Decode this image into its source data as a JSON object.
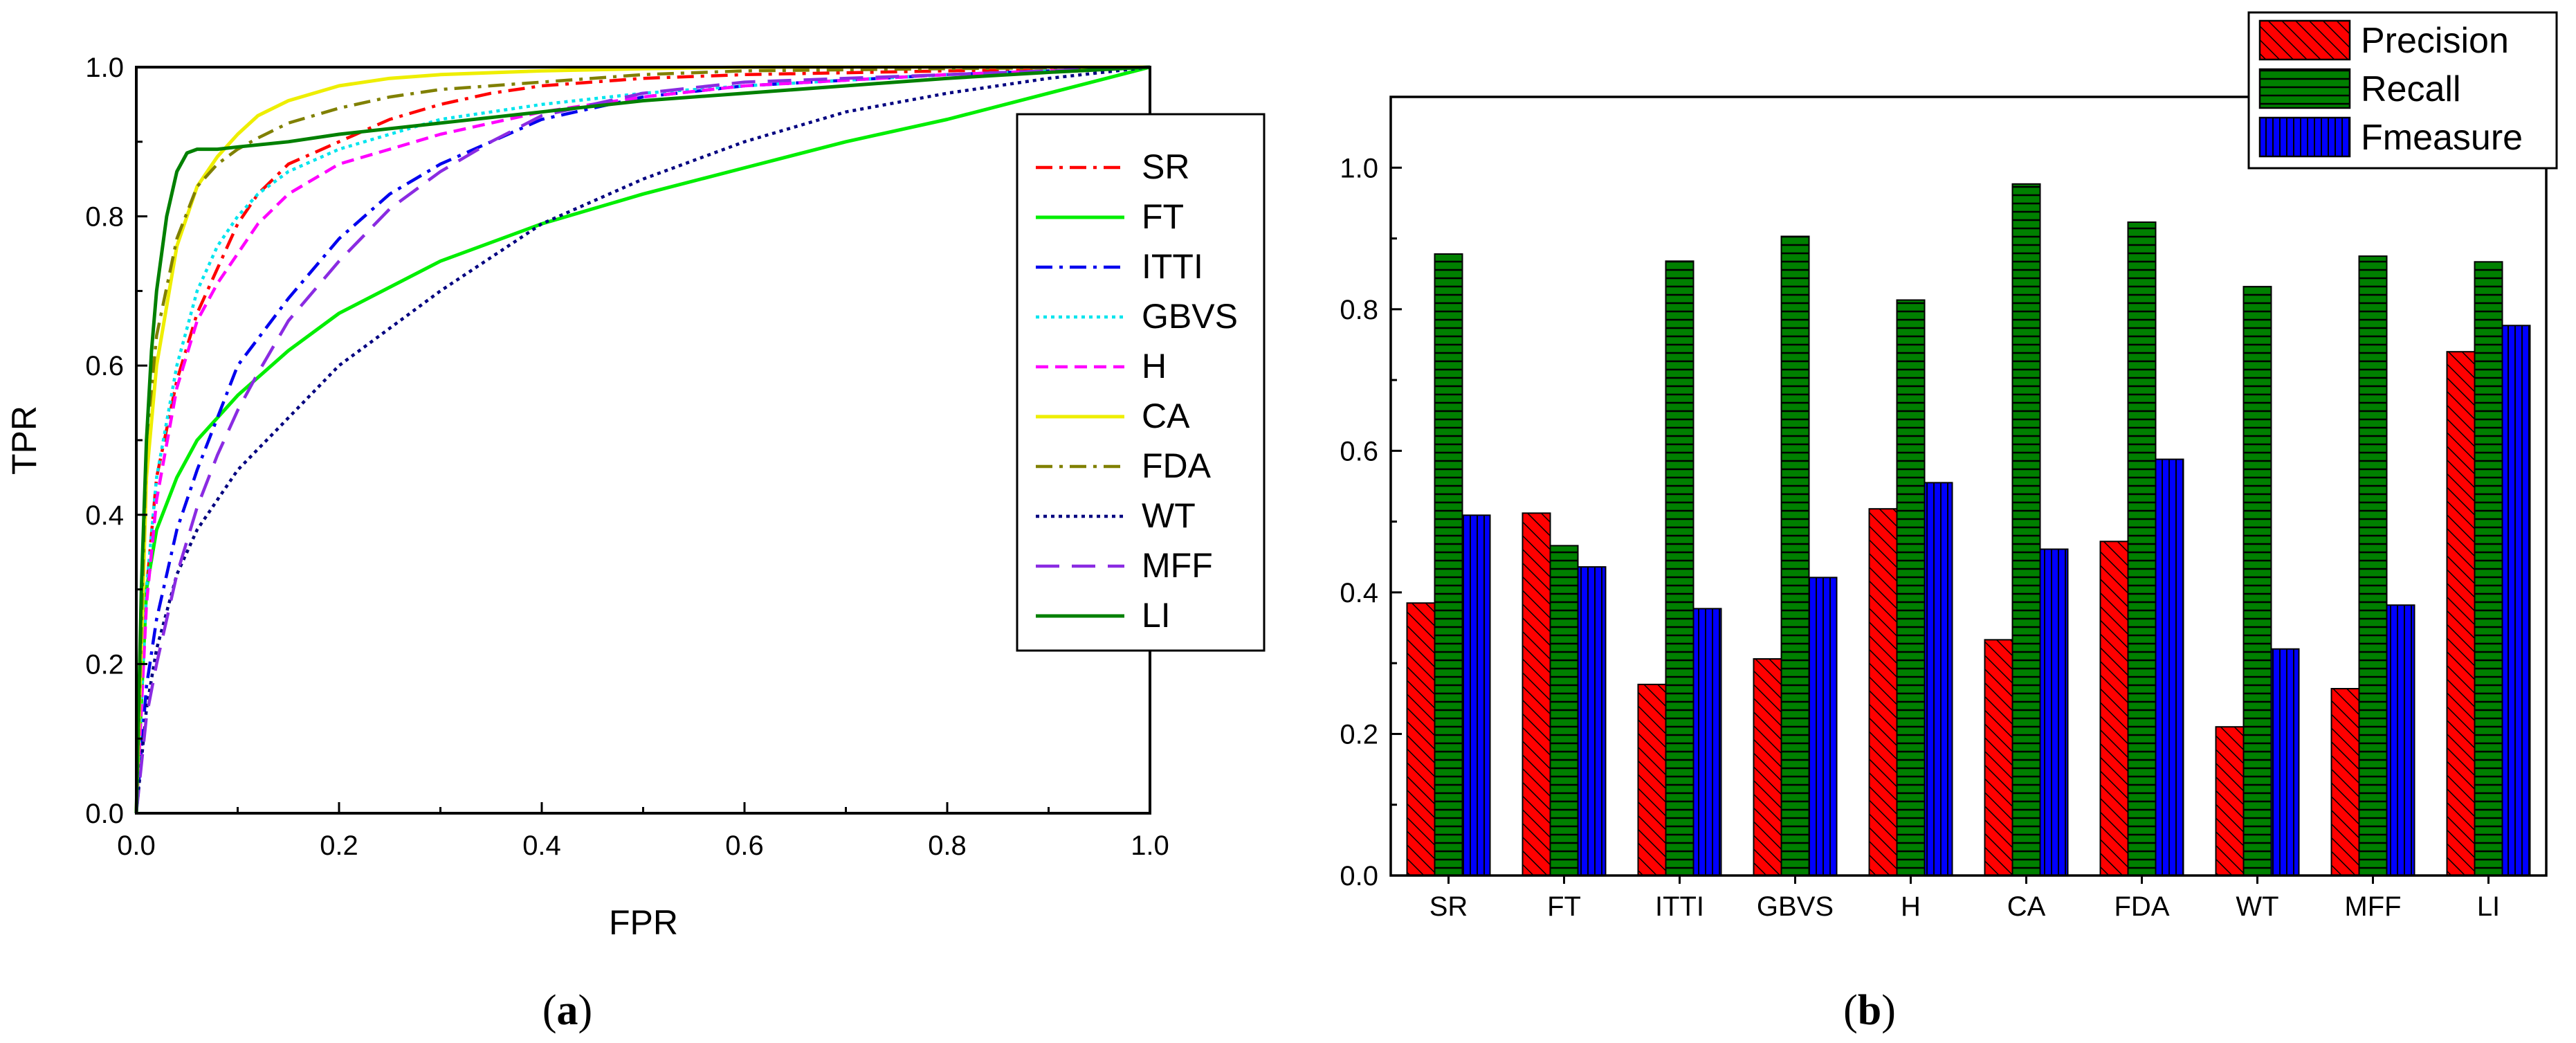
{
  "chart_data": [
    {
      "type": "line",
      "panel_label": {
        "open": "(",
        "letter": "a",
        "close": ")"
      },
      "xlabel": "FPR",
      "ylabel": "TPR",
      "xlim": [
        0.0,
        1.0
      ],
      "ylim": [
        0.0,
        1.0
      ],
      "x_ticks": [
        "0.0",
        "0.2",
        "0.4",
        "0.6",
        "0.8",
        "1.0"
      ],
      "y_ticks": [
        "0.0",
        "0.2",
        "0.4",
        "0.6",
        "0.8",
        "1.0"
      ],
      "legend_position": "right",
      "series": [
        {
          "name": "SR",
          "color": "#ff0000",
          "dash": "dashdot",
          "x": [
            0,
            0.01,
            0.02,
            0.04,
            0.06,
            0.08,
            0.1,
            0.12,
            0.15,
            0.2,
            0.25,
            0.3,
            0.35,
            0.4,
            0.5,
            0.6,
            0.8,
            1.0
          ],
          "y": [
            0,
            0.3,
            0.45,
            0.58,
            0.67,
            0.73,
            0.79,
            0.83,
            0.87,
            0.9,
            0.93,
            0.95,
            0.965,
            0.975,
            0.985,
            0.99,
            0.995,
            1.0
          ]
        },
        {
          "name": "FT",
          "color": "#00ee00",
          "dash": "solid",
          "x": [
            0,
            0.01,
            0.02,
            0.04,
            0.06,
            0.1,
            0.15,
            0.2,
            0.3,
            0.4,
            0.5,
            0.6,
            0.7,
            0.8,
            0.9,
            1.0
          ],
          "y": [
            0,
            0.3,
            0.38,
            0.45,
            0.5,
            0.56,
            0.62,
            0.67,
            0.74,
            0.79,
            0.83,
            0.865,
            0.9,
            0.93,
            0.965,
            1.0
          ]
        },
        {
          "name": "ITTI",
          "color": "#0000ee",
          "dash": "dashdot",
          "x": [
            0,
            0.01,
            0.02,
            0.04,
            0.06,
            0.08,
            0.1,
            0.15,
            0.2,
            0.25,
            0.3,
            0.35,
            0.4,
            0.5,
            0.6,
            0.8,
            1.0
          ],
          "y": [
            0,
            0.17,
            0.26,
            0.38,
            0.46,
            0.53,
            0.6,
            0.69,
            0.77,
            0.83,
            0.87,
            0.9,
            0.93,
            0.96,
            0.975,
            0.99,
            1.0
          ]
        },
        {
          "name": "GBVS",
          "color": "#00e5ee",
          "dash": "dotted",
          "x": [
            0,
            0.01,
            0.02,
            0.04,
            0.06,
            0.08,
            0.1,
            0.12,
            0.15,
            0.2,
            0.25,
            0.3,
            0.4,
            0.5,
            0.6,
            0.8,
            1.0
          ],
          "y": [
            0,
            0.3,
            0.45,
            0.6,
            0.7,
            0.76,
            0.8,
            0.83,
            0.86,
            0.89,
            0.91,
            0.93,
            0.95,
            0.965,
            0.975,
            0.99,
            1.0
          ]
        },
        {
          "name": "H",
          "color": "#ff00ff",
          "dash": "dashed",
          "x": [
            0,
            0.01,
            0.02,
            0.04,
            0.06,
            0.08,
            0.1,
            0.12,
            0.15,
            0.2,
            0.25,
            0.3,
            0.35,
            0.4,
            0.5,
            0.6,
            0.8,
            1.0
          ],
          "y": [
            0,
            0.28,
            0.42,
            0.57,
            0.66,
            0.71,
            0.75,
            0.79,
            0.83,
            0.87,
            0.89,
            0.91,
            0.925,
            0.94,
            0.96,
            0.975,
            0.99,
            1.0
          ]
        },
        {
          "name": "CA",
          "color": "#eeee00",
          "dash": "solid",
          "x": [
            0,
            0.01,
            0.02,
            0.04,
            0.06,
            0.08,
            0.1,
            0.12,
            0.15,
            0.2,
            0.25,
            0.3,
            0.4,
            0.5,
            0.6,
            0.8,
            1.0
          ],
          "y": [
            0,
            0.45,
            0.6,
            0.76,
            0.84,
            0.88,
            0.91,
            0.935,
            0.955,
            0.975,
            0.985,
            0.99,
            0.995,
            0.998,
            1.0,
            1.0,
            1.0
          ]
        },
        {
          "name": "FDA",
          "color": "#808000",
          "dash": "dashdot",
          "x": [
            0,
            0.01,
            0.02,
            0.04,
            0.06,
            0.08,
            0.1,
            0.12,
            0.15,
            0.2,
            0.25,
            0.3,
            0.4,
            0.5,
            0.6,
            0.8,
            1.0
          ],
          "y": [
            0,
            0.5,
            0.64,
            0.77,
            0.84,
            0.87,
            0.89,
            0.905,
            0.925,
            0.945,
            0.96,
            0.97,
            0.98,
            0.99,
            0.995,
            0.998,
            1.0
          ]
        },
        {
          "name": "WT",
          "color": "#000080",
          "dash": "dotted",
          "x": [
            0,
            0.01,
            0.02,
            0.04,
            0.06,
            0.08,
            0.1,
            0.15,
            0.2,
            0.3,
            0.4,
            0.5,
            0.6,
            0.7,
            0.8,
            0.9,
            1.0
          ],
          "y": [
            0,
            0.14,
            0.22,
            0.32,
            0.38,
            0.42,
            0.46,
            0.53,
            0.6,
            0.7,
            0.79,
            0.85,
            0.9,
            0.94,
            0.965,
            0.985,
            1.0
          ]
        },
        {
          "name": "MFF",
          "color": "#8a2be2",
          "dash": "longdash",
          "x": [
            0,
            0.01,
            0.02,
            0.04,
            0.06,
            0.08,
            0.1,
            0.12,
            0.15,
            0.2,
            0.25,
            0.3,
            0.35,
            0.4,
            0.5,
            0.6,
            0.8,
            1.0
          ],
          "y": [
            0,
            0.13,
            0.2,
            0.32,
            0.41,
            0.48,
            0.54,
            0.59,
            0.66,
            0.74,
            0.81,
            0.86,
            0.9,
            0.935,
            0.965,
            0.98,
            0.99,
            1.0
          ]
        },
        {
          "name": "LI",
          "color": "#008000",
          "dash": "solid",
          "x": [
            0,
            0.005,
            0.01,
            0.015,
            0.02,
            0.03,
            0.04,
            0.05,
            0.06,
            0.08,
            0.1,
            0.15,
            0.2,
            0.3,
            0.4,
            0.5,
            0.6,
            0.7,
            0.8,
            0.9,
            1.0
          ],
          "y": [
            0,
            0.3,
            0.5,
            0.62,
            0.7,
            0.8,
            0.86,
            0.885,
            0.89,
            0.89,
            0.893,
            0.9,
            0.91,
            0.925,
            0.94,
            0.955,
            0.965,
            0.975,
            0.985,
            0.993,
            1.0
          ]
        }
      ]
    },
    {
      "type": "bar",
      "panel_label": {
        "open": "(",
        "letter": "b",
        "close": ")"
      },
      "xlabel": "",
      "ylabel": "",
      "ylim": [
        0.0,
        1.1
      ],
      "y_ticks": [
        "0.0",
        "0.2",
        "0.4",
        "0.6",
        "0.8",
        "1.0"
      ],
      "legend_position": "top-right",
      "categories": [
        "SR",
        "FT",
        "ITTI",
        "GBVS",
        "H",
        "CA",
        "FDA",
        "WT",
        "MFF",
        "LI"
      ],
      "series": [
        {
          "name": "Precision",
          "color": "#ff0000",
          "pattern": "diagonal",
          "values": [
            0.385,
            0.512,
            0.27,
            0.306,
            0.518,
            0.333,
            0.472,
            0.21,
            0.264,
            0.74
          ]
        },
        {
          "name": "Recall",
          "color": "#008000",
          "pattern": "horizontal",
          "values": [
            0.878,
            0.466,
            0.868,
            0.903,
            0.813,
            0.977,
            0.923,
            0.832,
            0.875,
            0.867
          ]
        },
        {
          "name": "Fmeasure",
          "color": "#0000ff",
          "pattern": "vertical",
          "values": [
            0.509,
            0.436,
            0.377,
            0.421,
            0.555,
            0.461,
            0.588,
            0.32,
            0.382,
            0.777
          ]
        }
      ]
    }
  ]
}
